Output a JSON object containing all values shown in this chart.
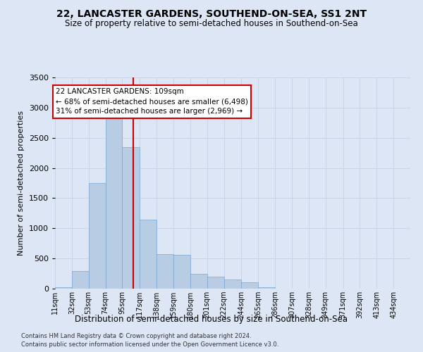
{
  "title": "22, LANCASTER GARDENS, SOUTHEND-ON-SEA, SS1 2NT",
  "subtitle": "Size of property relative to semi-detached houses in Southend-on-Sea",
  "xlabel": "Distribution of semi-detached houses by size in Southend-on-Sea",
  "ylabel": "Number of semi-detached properties",
  "footer1": "Contains HM Land Registry data © Crown copyright and database right 2024.",
  "footer2": "Contains public sector information licensed under the Open Government Licence v3.0.",
  "annotation_title": "22 LANCASTER GARDENS: 109sqm",
  "annotation_line1": "← 68% of semi-detached houses are smaller (6,498)",
  "annotation_line2": "31% of semi-detached houses are larger (2,969) →",
  "property_size": 109,
  "vline_x": 109,
  "bar_color": "#b8cce4",
  "bar_edge_color": "#7aa6d4",
  "vline_color": "#cc0000",
  "annotation_box_color": "#cc0000",
  "grid_color": "#c8d4e8",
  "bg_color": "#dce6f4",
  "categories": [
    "11sqm",
    "32sqm",
    "53sqm",
    "74sqm",
    "95sqm",
    "117sqm",
    "138sqm",
    "159sqm",
    "180sqm",
    "201sqm",
    "222sqm",
    "244sqm",
    "265sqm",
    "286sqm",
    "307sqm",
    "328sqm",
    "349sqm",
    "371sqm",
    "392sqm",
    "413sqm",
    "434sqm"
  ],
  "values": [
    28,
    295,
    1750,
    3100,
    2340,
    1145,
    570,
    565,
    248,
    198,
    148,
    102,
    28,
    5,
    0,
    0,
    0,
    0,
    0,
    0,
    0
  ],
  "bin_edges": [
    11,
    32,
    53,
    74,
    95,
    117,
    138,
    159,
    180,
    201,
    222,
    244,
    265,
    286,
    307,
    328,
    349,
    371,
    392,
    413,
    434,
    455
  ],
  "ylim": [
    0,
    3500
  ],
  "yticks": [
    0,
    500,
    1000,
    1500,
    2000,
    2500,
    3000,
    3500
  ]
}
